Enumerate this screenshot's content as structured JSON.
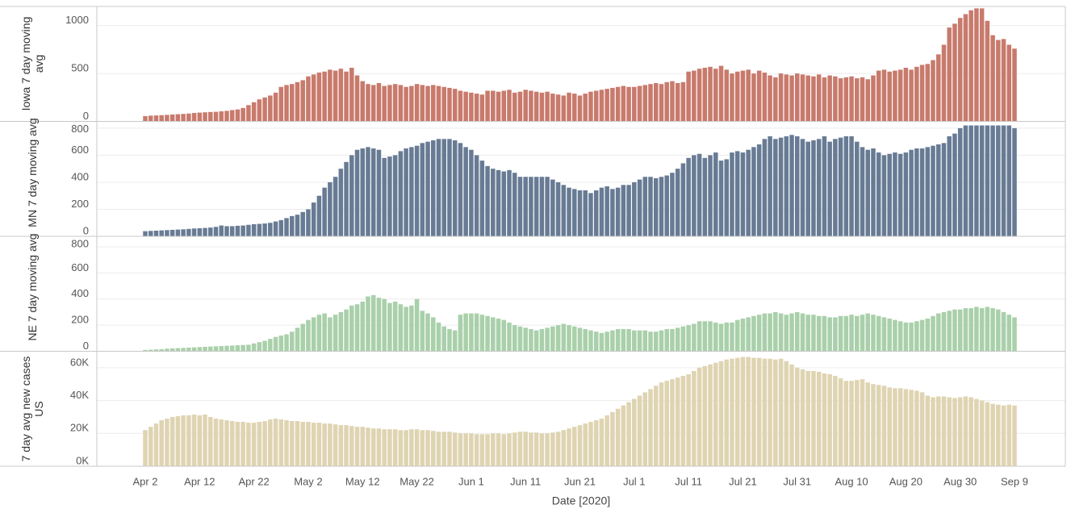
{
  "chart_data": [
    {
      "type": "bar",
      "y_label": "Iowa 7 day moving avg",
      "color": "#c87a6c",
      "ylim": [
        0,
        1200
      ],
      "yticks": [
        0,
        500,
        1000
      ],
      "grid": true,
      "values": [
        55,
        60,
        62,
        65,
        68,
        72,
        75,
        78,
        82,
        88,
        92,
        95,
        98,
        100,
        105,
        110,
        118,
        125,
        140,
        170,
        200,
        230,
        250,
        270,
        300,
        360,
        380,
        390,
        410,
        430,
        470,
        490,
        510,
        520,
        540,
        530,
        550,
        520,
        560,
        480,
        420,
        390,
        380,
        400,
        370,
        380,
        390,
        380,
        360,
        370,
        390,
        380,
        370,
        380,
        370,
        360,
        350,
        340,
        320,
        310,
        300,
        290,
        280,
        320,
        320,
        310,
        320,
        330,
        300,
        310,
        330,
        320,
        310,
        300,
        310,
        290,
        280,
        270,
        300,
        290,
        270,
        290,
        310,
        320,
        330,
        340,
        350,
        360,
        370,
        360,
        360,
        370,
        380,
        390,
        400,
        390,
        410,
        420,
        400,
        410,
        520,
        530,
        550,
        560,
        570,
        550,
        580,
        540,
        500,
        520,
        530,
        540,
        500,
        530,
        510,
        480,
        460,
        500,
        490,
        480,
        500,
        490,
        480,
        470,
        490,
        460,
        480,
        470,
        450,
        460,
        470,
        450,
        460,
        440,
        480,
        530,
        540,
        520,
        530,
        540,
        560,
        540,
        570,
        590,
        600,
        640,
        700,
        800,
        980,
        1020,
        1080,
        1120,
        1160,
        1180,
        1180,
        1050,
        900,
        850,
        860,
        800,
        760
      ]
    },
    {
      "type": "bar",
      "y_label": "MN 7 day moving avg",
      "color": "#687b94",
      "ylim": [
        0,
        850
      ],
      "yticks": [
        0,
        200,
        400,
        600,
        800
      ],
      "grid": true,
      "values": [
        38,
        40,
        42,
        44,
        46,
        48,
        50,
        52,
        55,
        58,
        60,
        62,
        65,
        70,
        80,
        75,
        75,
        78,
        80,
        85,
        90,
        92,
        95,
        100,
        110,
        120,
        135,
        150,
        160,
        180,
        200,
        250,
        300,
        360,
        400,
        440,
        500,
        550,
        600,
        640,
        650,
        660,
        650,
        640,
        580,
        590,
        600,
        630,
        650,
        660,
        670,
        690,
        700,
        710,
        720,
        720,
        720,
        710,
        690,
        660,
        640,
        600,
        560,
        520,
        500,
        490,
        480,
        490,
        470,
        440,
        440,
        440,
        440,
        440,
        440,
        420,
        400,
        380,
        360,
        350,
        340,
        340,
        320,
        340,
        360,
        370,
        350,
        360,
        380,
        380,
        400,
        420,
        440,
        440,
        430,
        440,
        450,
        470,
        500,
        540,
        580,
        600,
        610,
        580,
        600,
        620,
        560,
        570,
        620,
        630,
        620,
        640,
        660,
        680,
        720,
        740,
        720,
        730,
        740,
        750,
        740,
        720,
        700,
        710,
        720,
        740,
        700,
        720,
        730,
        740,
        740,
        700,
        660,
        640,
        650,
        620,
        600,
        610,
        620,
        610,
        620,
        640,
        650,
        650,
        660,
        670,
        680,
        690,
        740,
        760,
        800,
        820,
        820,
        820,
        820,
        820,
        820,
        820,
        820,
        820,
        800
      ]
    },
    {
      "type": "bar",
      "y_label": "NE 7 day moving avg",
      "color": "#a9d0aa",
      "ylim": [
        0,
        880
      ],
      "yticks": [
        0,
        200,
        400,
        600,
        800
      ],
      "grid": true,
      "values": [
        10,
        12,
        14,
        16,
        20,
        22,
        24,
        26,
        28,
        30,
        32,
        34,
        36,
        38,
        40,
        42,
        44,
        46,
        48,
        50,
        60,
        70,
        80,
        95,
        110,
        120,
        130,
        150,
        180,
        210,
        240,
        260,
        280,
        290,
        260,
        280,
        300,
        320,
        350,
        360,
        380,
        420,
        430,
        410,
        400,
        370,
        380,
        360,
        340,
        350,
        400,
        310,
        290,
        260,
        220,
        190,
        170,
        160,
        280,
        290,
        290,
        290,
        280,
        270,
        260,
        250,
        240,
        220,
        200,
        190,
        180,
        170,
        160,
        170,
        180,
        190,
        200,
        210,
        200,
        190,
        180,
        170,
        160,
        150,
        140,
        150,
        160,
        170,
        170,
        170,
        160,
        160,
        160,
        150,
        150,
        160,
        170,
        170,
        180,
        190,
        200,
        210,
        230,
        230,
        230,
        220,
        210,
        220,
        220,
        240,
        250,
        260,
        270,
        280,
        290,
        290,
        300,
        290,
        280,
        290,
        300,
        290,
        280,
        280,
        270,
        270,
        260,
        260,
        270,
        270,
        280,
        270,
        280,
        290,
        280,
        270,
        260,
        250,
        240,
        230,
        220,
        220,
        230,
        240,
        250,
        270,
        290,
        300,
        310,
        320,
        320,
        330,
        330,
        340,
        330,
        340,
        330,
        320,
        300,
        280,
        260
      ]
    },
    {
      "type": "bar",
      "y_label": "7 day avg new cases US",
      "x_label": "Date [2020]",
      "color": "#dfd4b2",
      "ylim": [
        0,
        70000
      ],
      "yticks": [
        {
          "value": 0,
          "label": "0K"
        },
        {
          "value": 20000,
          "label": "20K"
        },
        {
          "value": 40000,
          "label": "40K"
        },
        {
          "value": 60000,
          "label": "60K"
        }
      ],
      "grid": true,
      "categories": [
        "Apr 2",
        null,
        null,
        null,
        null,
        null,
        null,
        null,
        null,
        null,
        "Apr 12",
        null,
        null,
        null,
        null,
        null,
        null,
        null,
        null,
        null,
        "Apr 22",
        null,
        null,
        null,
        null,
        null,
        null,
        null,
        null,
        null,
        "May 2",
        null,
        null,
        null,
        null,
        null,
        null,
        null,
        null,
        null,
        "May 12",
        null,
        null,
        null,
        null,
        null,
        null,
        null,
        null,
        null,
        "May 22",
        null,
        null,
        null,
        null,
        null,
        null,
        null,
        null,
        null,
        "Jun 1",
        null,
        null,
        null,
        null,
        null,
        null,
        null,
        null,
        null,
        "Jun 11",
        null,
        null,
        null,
        null,
        null,
        null,
        null,
        null,
        null,
        "Jun 21",
        null,
        null,
        null,
        null,
        null,
        null,
        null,
        null,
        null,
        "Jul 1",
        null,
        null,
        null,
        null,
        null,
        null,
        null,
        null,
        null,
        "Jul 11",
        null,
        null,
        null,
        null,
        null,
        null,
        null,
        null,
        null,
        "Jul 21",
        null,
        null,
        null,
        null,
        null,
        null,
        null,
        null,
        null,
        "Jul 31",
        null,
        null,
        null,
        null,
        null,
        null,
        null,
        null,
        null,
        "Aug 10",
        null,
        null,
        null,
        null,
        null,
        null,
        null,
        null,
        null,
        "Aug 20",
        null,
        null,
        null,
        null,
        null,
        null,
        null,
        null,
        null,
        "Aug 30",
        null,
        null,
        null,
        null,
        null,
        null,
        null,
        null,
        null,
        "Sep 9"
      ],
      "values": [
        22000,
        24000,
        26000,
        28000,
        29000,
        30000,
        30500,
        31000,
        31000,
        31500,
        31000,
        31500,
        30000,
        29000,
        28500,
        28000,
        27500,
        27000,
        27000,
        26500,
        26500,
        27000,
        27500,
        28500,
        29000,
        28500,
        28000,
        27500,
        27500,
        27000,
        27000,
        26500,
        26500,
        26000,
        26000,
        25500,
        25000,
        25000,
        24500,
        24000,
        24000,
        23500,
        23000,
        23000,
        22500,
        22500,
        22500,
        22000,
        22000,
        22500,
        22500,
        22000,
        22000,
        21500,
        21000,
        21000,
        21000,
        20500,
        20000,
        20000,
        20000,
        19500,
        19500,
        19500,
        20000,
        20000,
        19500,
        20000,
        20500,
        21000,
        21000,
        20500,
        20500,
        20000,
        20000,
        20500,
        21000,
        22000,
        23000,
        24000,
        25000,
        26000,
        27000,
        28000,
        29000,
        31000,
        33000,
        35000,
        37000,
        39000,
        41000,
        43000,
        45000,
        47000,
        49000,
        51000,
        52000,
        53000,
        54000,
        55000,
        56000,
        58000,
        60000,
        61000,
        62000,
        63000,
        64000,
        65000,
        65500,
        66000,
        66500,
        66500,
        66000,
        66000,
        65500,
        65500,
        65000,
        65500,
        64000,
        62000,
        60000,
        59000,
        58000,
        58000,
        57500,
        56500,
        56000,
        55000,
        53500,
        52000,
        52000,
        52500,
        53000,
        51000,
        50000,
        49500,
        49000,
        48000,
        47500,
        47500,
        47000,
        46500,
        46000,
        45000,
        43000,
        42000,
        42500,
        42500,
        42000,
        41500,
        42000,
        42500,
        42000,
        41000,
        40000,
        39000,
        38000,
        37500,
        37000,
        37500,
        37000
      ]
    }
  ]
}
